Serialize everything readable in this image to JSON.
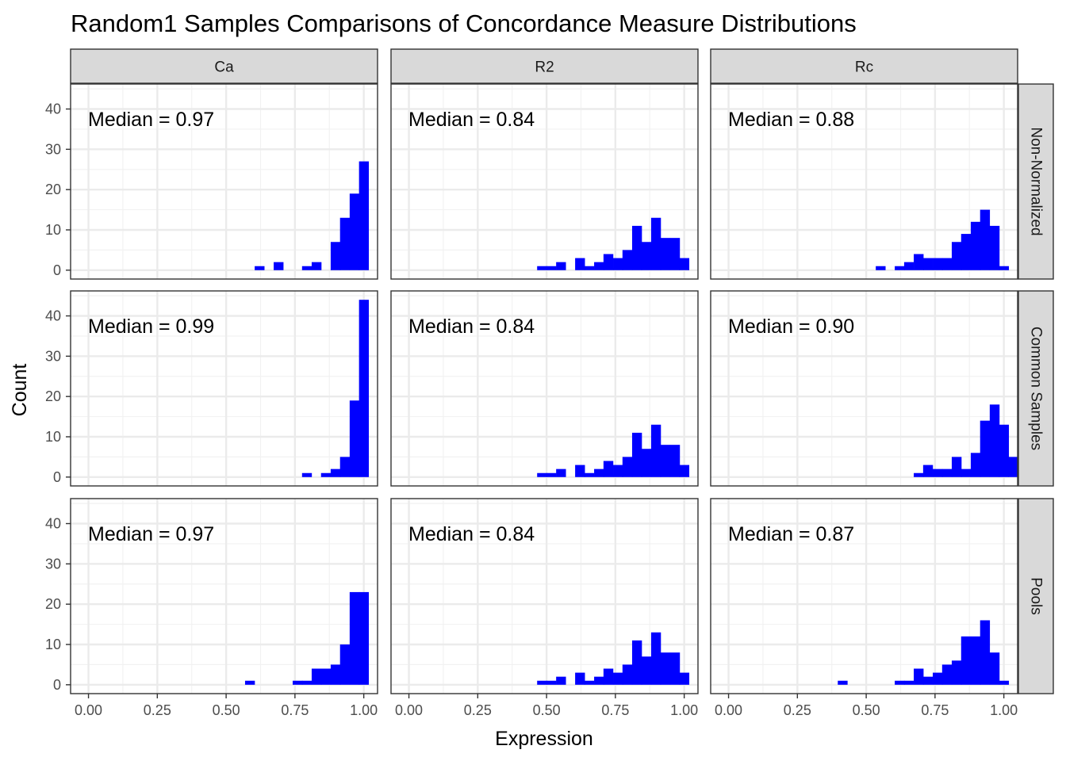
{
  "chart_data": {
    "type": "bar",
    "title": "Random1 Samples Comparisons of Concordance Measure Distributions",
    "xlabel": "Expression",
    "ylabel": "Count",
    "xlim": [
      -0.065,
      1.05
    ],
    "ylim": [
      -2.2,
      46.2
    ],
    "x_ticks": [
      0,
      0.25,
      0.5,
      0.75,
      1.0
    ],
    "x_tick_labels": [
      "0.00",
      "0.25",
      "0.50",
      "0.75",
      "1.00"
    ],
    "y_ticks": [
      0,
      10,
      20,
      30,
      40
    ],
    "y_tick_labels": [
      "0",
      "10",
      "20",
      "30",
      "40"
    ],
    "bin_width": 0.0345,
    "bar_color": "#0000ff",
    "grid": true,
    "col_facets": [
      "Ca",
      "R2",
      "Rc"
    ],
    "row_facets": [
      "Non-Normalized",
      "Common Samples",
      "Pools"
    ],
    "panels": [
      {
        "row": "Non-Normalized",
        "col": "Ca",
        "median_label": "Median = 0.97",
        "bins": [
          [
            0.621,
            1
          ],
          [
            0.69,
            2
          ],
          [
            0.793,
            1
          ],
          [
            0.828,
            2
          ],
          [
            0.897,
            7
          ],
          [
            0.931,
            13
          ],
          [
            0.966,
            19
          ],
          [
            1.0,
            27
          ]
        ]
      },
      {
        "row": "Non-Normalized",
        "col": "R2",
        "median_label": "Median = 0.84",
        "bins": [
          [
            0.483,
            1
          ],
          [
            0.517,
            1
          ],
          [
            0.552,
            2
          ],
          [
            0.621,
            3
          ],
          [
            0.655,
            1
          ],
          [
            0.69,
            2
          ],
          [
            0.724,
            4
          ],
          [
            0.759,
            3
          ],
          [
            0.793,
            5
          ],
          [
            0.828,
            11
          ],
          [
            0.862,
            7
          ],
          [
            0.897,
            13
          ],
          [
            0.931,
            8
          ],
          [
            0.966,
            8
          ],
          [
            1.0,
            3
          ]
        ]
      },
      {
        "row": "Non-Normalized",
        "col": "Rc",
        "median_label": "Median = 0.88",
        "bins": [
          [
            0.552,
            1
          ],
          [
            0.621,
            1
          ],
          [
            0.655,
            2
          ],
          [
            0.69,
            4
          ],
          [
            0.724,
            3
          ],
          [
            0.759,
            3
          ],
          [
            0.793,
            3
          ],
          [
            0.828,
            7
          ],
          [
            0.862,
            9
          ],
          [
            0.897,
            12
          ],
          [
            0.931,
            15
          ],
          [
            0.966,
            11
          ],
          [
            1.0,
            1
          ]
        ]
      },
      {
        "row": "Common Samples",
        "col": "Ca",
        "median_label": "Median = 0.99",
        "bins": [
          [
            0.793,
            1
          ],
          [
            0.862,
            1
          ],
          [
            0.897,
            2
          ],
          [
            0.931,
            5
          ],
          [
            0.966,
            19
          ],
          [
            1.0,
            44
          ]
        ]
      },
      {
        "row": "Common Samples",
        "col": "R2",
        "median_label": "Median = 0.84",
        "bins": [
          [
            0.483,
            1
          ],
          [
            0.517,
            1
          ],
          [
            0.552,
            2
          ],
          [
            0.621,
            3
          ],
          [
            0.655,
            1
          ],
          [
            0.69,
            2
          ],
          [
            0.724,
            4
          ],
          [
            0.759,
            3
          ],
          [
            0.793,
            5
          ],
          [
            0.828,
            11
          ],
          [
            0.862,
            7
          ],
          [
            0.897,
            13
          ],
          [
            0.931,
            8
          ],
          [
            0.966,
            8
          ],
          [
            1.0,
            3
          ]
        ]
      },
      {
        "row": "Common Samples",
        "col": "Rc",
        "median_label": "Median = 0.90",
        "bins": [
          [
            0.69,
            1
          ],
          [
            0.724,
            3
          ],
          [
            0.759,
            2
          ],
          [
            0.793,
            2
          ],
          [
            0.828,
            5
          ],
          [
            0.862,
            2
          ],
          [
            0.897,
            6
          ],
          [
            0.931,
            14
          ],
          [
            0.966,
            18
          ],
          [
            1.0,
            13
          ],
          [
            1.034,
            5
          ]
        ]
      },
      {
        "row": "Pools",
        "col": "Ca",
        "median_label": "Median = 0.97",
        "bins": [
          [
            0.586,
            1
          ],
          [
            0.759,
            1
          ],
          [
            0.793,
            1
          ],
          [
            0.828,
            4
          ],
          [
            0.862,
            4
          ],
          [
            0.897,
            5
          ],
          [
            0.931,
            10
          ],
          [
            0.966,
            23
          ],
          [
            1.0,
            23
          ]
        ]
      },
      {
        "row": "Pools",
        "col": "R2",
        "median_label": "Median = 0.84",
        "bins": [
          [
            0.483,
            1
          ],
          [
            0.517,
            1
          ],
          [
            0.552,
            2
          ],
          [
            0.621,
            3
          ],
          [
            0.655,
            1
          ],
          [
            0.69,
            2
          ],
          [
            0.724,
            4
          ],
          [
            0.759,
            3
          ],
          [
            0.793,
            5
          ],
          [
            0.828,
            11
          ],
          [
            0.862,
            7
          ],
          [
            0.897,
            13
          ],
          [
            0.931,
            8
          ],
          [
            0.966,
            8
          ],
          [
            1.0,
            3
          ]
        ]
      },
      {
        "row": "Pools",
        "col": "Rc",
        "median_label": "Median = 0.87",
        "bins": [
          [
            0.414,
            1
          ],
          [
            0.621,
            1
          ],
          [
            0.655,
            1
          ],
          [
            0.69,
            4
          ],
          [
            0.724,
            2
          ],
          [
            0.759,
            3
          ],
          [
            0.793,
            5
          ],
          [
            0.828,
            6
          ],
          [
            0.862,
            12
          ],
          [
            0.897,
            12
          ],
          [
            0.931,
            16
          ],
          [
            0.966,
            8
          ],
          [
            1.0,
            1
          ]
        ]
      }
    ]
  }
}
